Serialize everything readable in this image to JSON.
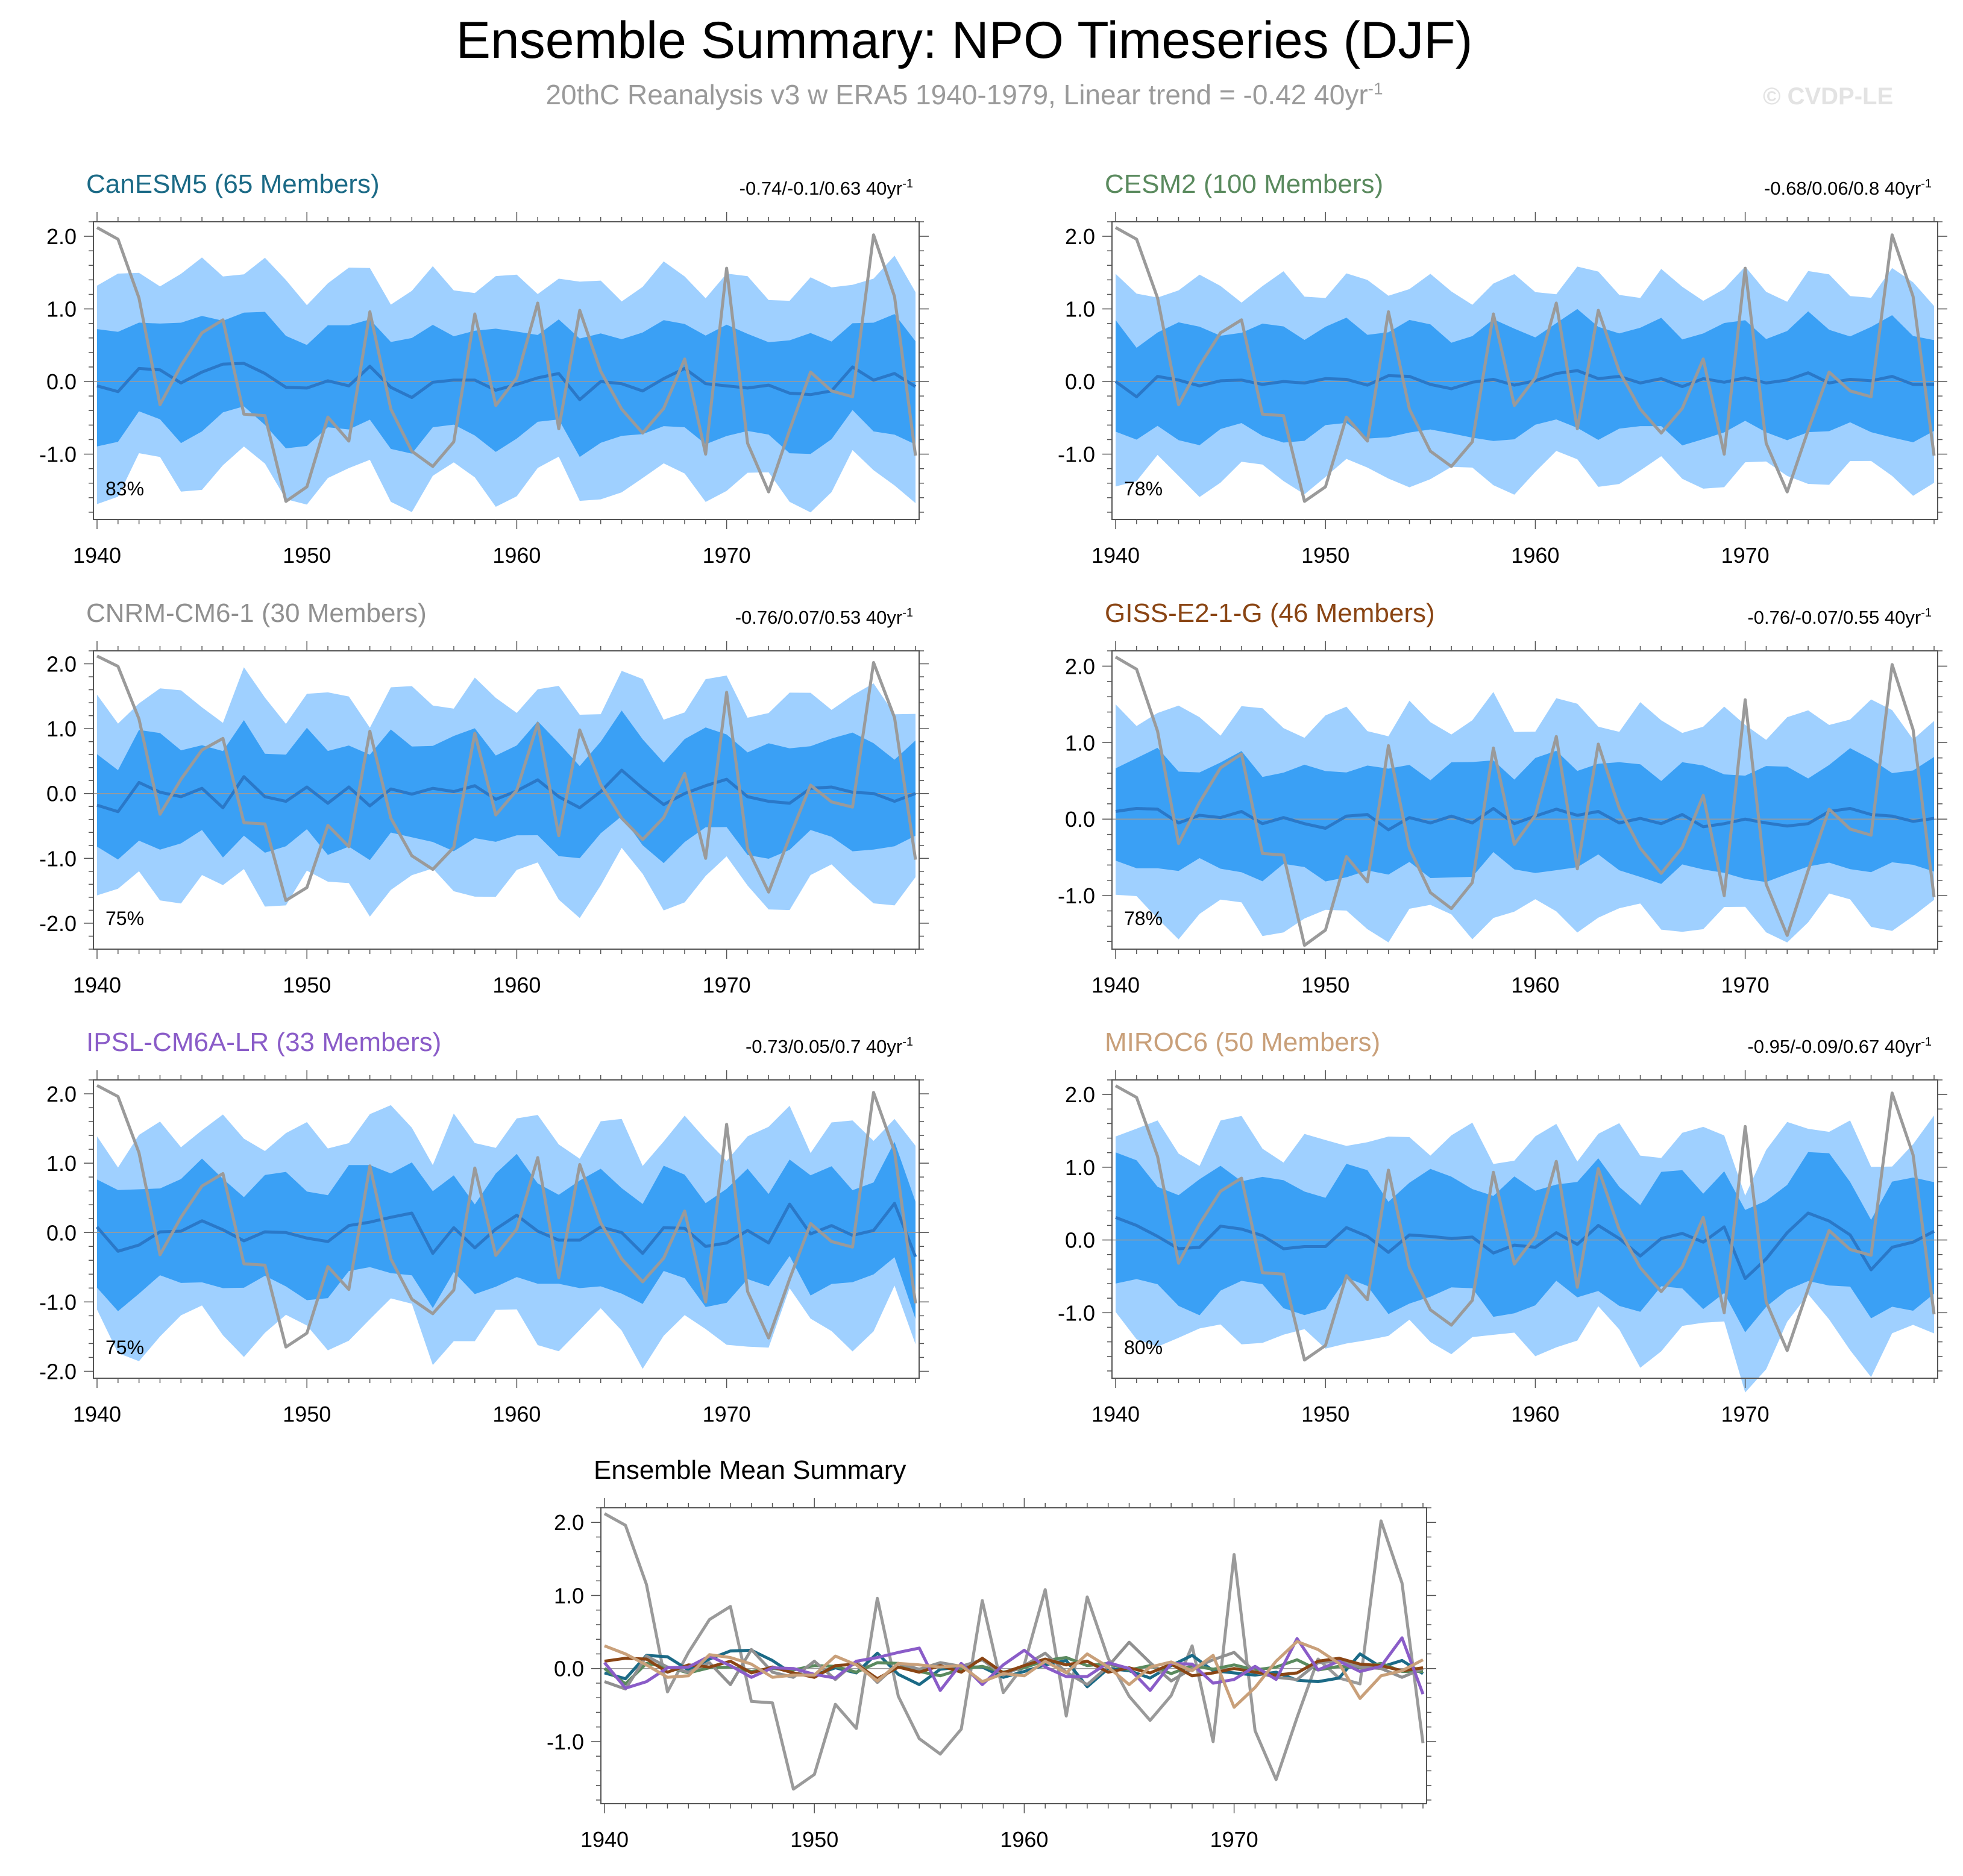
{
  "title": "Ensemble Summary: NPO Timeseries (DJF)",
  "subtitle": {
    "text": "20thC Reanalysis v3 w ERA5 1940-1979, Linear trend = -0.42 40yr",
    "sup": "-1"
  },
  "watermark": "© CVDP-LE",
  "colors": {
    "band_outer": "#9fd0ff",
    "band_inner": "#3aa0f5",
    "ens_mean": "#2a78c8",
    "obs": "#9a9a9a",
    "axis": "#555555"
  },
  "obs_values": [
    2.12,
    1.96,
    1.15,
    -0.32,
    0.22,
    0.67,
    0.85,
    -0.45,
    -0.47,
    -1.65,
    -1.45,
    -0.49,
    -0.82,
    0.96,
    -0.38,
    -0.96,
    -1.17,
    -0.83,
    0.93,
    -0.33,
    0.05,
    1.08,
    -0.65,
    0.98,
    0.14,
    -0.38,
    -0.71,
    -0.37,
    0.31,
    -1.0,
    1.56,
    -0.85,
    -1.52,
    -0.67,
    0.13,
    -0.13,
    -0.21,
    2.02,
    1.17,
    -1.02
  ],
  "chart_data": [
    {
      "type": "area",
      "title": "CanESM5 (65 Members)",
      "title_color": "#1b6a86",
      "trend_text": "-0.74/-0.1/0.63 40yr",
      "trend_sup": "-1",
      "percent_label": "83%",
      "x_start": 1940,
      "xticks": [
        "1940",
        "1950",
        "1960",
        "1970"
      ],
      "yticks": [
        "2.0",
        "1.0",
        "0.0",
        "-1.0"
      ],
      "ylim": [
        -1.9,
        2.2
      ],
      "mean": [
        -0.06,
        -0.14,
        0.18,
        0.16,
        -0.02,
        0.13,
        0.24,
        0.25,
        0.11,
        -0.08,
        -0.09,
        0.01,
        -0.06,
        0.21,
        -0.08,
        -0.22,
        -0.01,
        0.02,
        0.02,
        -0.12,
        -0.04,
        0.05,
        0.11,
        -0.25,
        0.0,
        -0.03,
        -0.13,
        0.04,
        0.18,
        -0.03,
        -0.06,
        -0.09,
        -0.05,
        -0.16,
        -0.18,
        -0.13,
        0.2,
        0.02,
        0.11,
        -0.07
      ],
      "inner_halfwidth": 0.72,
      "outer_halfwidth": 1.38
    },
    {
      "type": "area",
      "title": "CESM2 (100 Members)",
      "title_color": "#5a8a5e",
      "trend_text": "-0.68/0.06/0.8 40yr",
      "trend_sup": "-1",
      "percent_label": "78%",
      "x_start": 1940,
      "xticks": [
        "1940",
        "1950",
        "1960",
        "1970"
      ],
      "yticks": [
        "2.0",
        "1.0",
        "0.0",
        "-1.0"
      ],
      "ylim": [
        -1.9,
        2.2
      ],
      "mean": [
        0.0,
        -0.21,
        0.07,
        0.02,
        -0.06,
        0.01,
        0.02,
        -0.04,
        0.0,
        -0.02,
        0.04,
        0.03,
        -0.05,
        0.08,
        0.07,
        -0.04,
        -0.1,
        -0.01,
        0.03,
        -0.05,
        0.01,
        0.11,
        0.15,
        0.04,
        0.07,
        -0.02,
        0.04,
        -0.07,
        0.04,
        -0.01,
        0.05,
        -0.02,
        0.02,
        0.12,
        -0.02,
        0.03,
        0.01,
        0.07,
        -0.04,
        -0.04
      ],
      "inner_halfwidth": 0.72,
      "outer_halfwidth": 1.3
    },
    {
      "type": "area",
      "title": "CNRM-CM6-1 (30 Members)",
      "title_color": "#909090",
      "trend_text": "-0.76/0.07/0.53 40yr",
      "trend_sup": "-1",
      "percent_label": "75%",
      "x_start": 1940,
      "xticks": [
        "1940",
        "1950",
        "1960",
        "1970"
      ],
      "yticks": [
        "2.0",
        "1.0",
        "0.0",
        "-1.0",
        "-2.0"
      ],
      "ylim": [
        -2.4,
        2.2
      ],
      "mean": [
        -0.18,
        -0.28,
        0.17,
        0.02,
        -0.05,
        0.08,
        -0.22,
        0.26,
        -0.05,
        -0.12,
        0.1,
        -0.15,
        0.1,
        -0.19,
        0.07,
        -0.01,
        0.08,
        0.03,
        0.12,
        -0.09,
        0.04,
        0.21,
        -0.05,
        -0.22,
        0.03,
        0.36,
        0.08,
        -0.17,
        0.0,
        0.12,
        0.22,
        -0.05,
        -0.12,
        -0.15,
        0.08,
        0.1,
        0.02,
        0.0,
        -0.12,
        0.0
      ],
      "inner_halfwidth": 0.78,
      "outer_halfwidth": 1.45
    },
    {
      "type": "area",
      "title": "GISS-E2-1-G (46 Members)",
      "title_color": "#8a4514",
      "trend_text": "-0.76/-0.07/0.55 40yr",
      "trend_sup": "-1",
      "percent_label": "78%",
      "x_start": 1940,
      "xticks": [
        "1940",
        "1950",
        "1960",
        "1970"
      ],
      "yticks": [
        "2.0",
        "1.0",
        "0.0",
        "-1.0"
      ],
      "ylim": [
        -1.7,
        2.2
      ],
      "mean": [
        0.1,
        0.14,
        0.13,
        -0.05,
        0.05,
        0.02,
        0.1,
        -0.06,
        0.02,
        -0.06,
        -0.12,
        0.04,
        0.06,
        -0.14,
        0.02,
        -0.05,
        0.04,
        -0.05,
        0.14,
        -0.06,
        0.04,
        0.13,
        0.05,
        0.1,
        -0.05,
        0.01,
        -0.06,
        0.06,
        -0.1,
        -0.06,
        0.0,
        -0.05,
        -0.09,
        -0.06,
        0.1,
        0.14,
        0.06,
        0.04,
        -0.03,
        0.01
      ],
      "inner_halfwidth": 0.68,
      "outer_halfwidth": 1.3
    },
    {
      "type": "area",
      "title": "IPSL-CM6A-LR (33 Members)",
      "title_color": "#8a5cc8",
      "trend_text": "-0.73/0.05/0.7 40yr",
      "trend_sup": "-1",
      "percent_label": "75%",
      "x_start": 1940,
      "xticks": [
        "1940",
        "1950",
        "1960",
        "1970"
      ],
      "yticks": [
        "2.0",
        "1.0",
        "0.0",
        "-1.0",
        "-2.0"
      ],
      "ylim": [
        -2.1,
        2.2
      ],
      "mean": [
        0.08,
        -0.27,
        -0.18,
        0.01,
        0.02,
        0.17,
        0.04,
        -0.12,
        0.01,
        0.0,
        -0.08,
        -0.13,
        0.1,
        0.15,
        0.22,
        0.28,
        -0.3,
        0.07,
        -0.22,
        0.05,
        0.25,
        0.02,
        -0.11,
        -0.11,
        0.08,
        0.0,
        -0.3,
        0.07,
        0.06,
        -0.2,
        -0.15,
        0.03,
        -0.15,
        0.41,
        -0.02,
        0.1,
        -0.04,
        0.03,
        0.42,
        -0.35
      ],
      "inner_halfwidth": 0.76,
      "outer_halfwidth": 1.42
    },
    {
      "type": "area",
      "title": "MIROC6 (50 Members)",
      "title_color": "#c9a07a",
      "trend_text": "-0.95/-0.09/0.67 40yr",
      "trend_sup": "-1",
      "percent_label": "80%",
      "x_start": 1940,
      "xticks": [
        "1940",
        "1950",
        "1960",
        "1970"
      ],
      "yticks": [
        "2.0",
        "1.0",
        "0.0",
        "-1.0"
      ],
      "ylim": [
        -1.9,
        2.2
      ],
      "mean": [
        0.31,
        0.2,
        0.05,
        -0.12,
        -0.1,
        0.19,
        0.15,
        0.06,
        -0.12,
        -0.09,
        -0.09,
        0.17,
        0.05,
        -0.17,
        0.07,
        0.05,
        0.02,
        0.04,
        -0.18,
        -0.07,
        -0.1,
        0.1,
        -0.06,
        0.2,
        0.02,
        -0.22,
        0.02,
        0.09,
        -0.03,
        0.18,
        -0.53,
        -0.26,
        0.1,
        0.37,
        0.26,
        0.07,
        -0.41,
        -0.1,
        -0.03,
        0.12
      ],
      "inner_halfwidth": 0.8,
      "outer_halfwidth": 1.35
    },
    {
      "type": "line",
      "title": "Ensemble Mean Summary",
      "x_start": 1940,
      "xticks": [
        "1940",
        "1950",
        "1960",
        "1970"
      ],
      "yticks": [
        "2.0",
        "1.0",
        "0.0",
        "-1.0"
      ],
      "ylim": [
        -1.85,
        2.2
      ],
      "series_from_panels": true,
      "include_obs": true
    }
  ]
}
